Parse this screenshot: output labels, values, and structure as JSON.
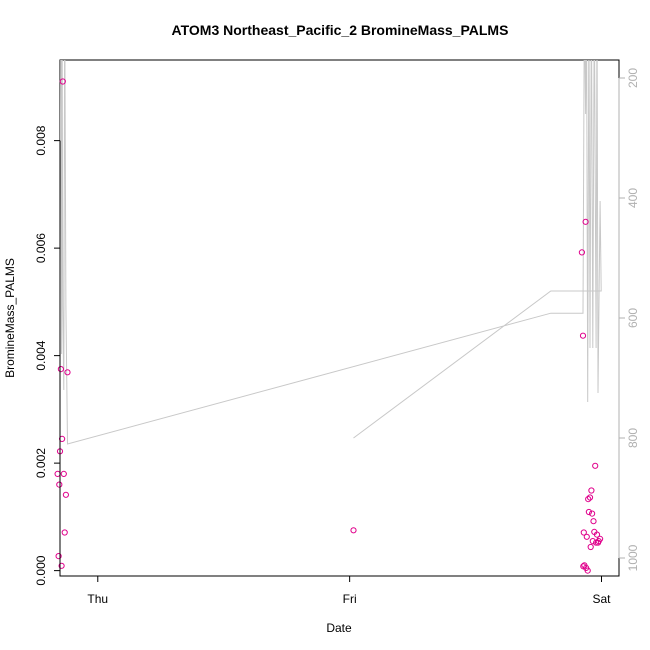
{
  "chart_data": {
    "type": "scatter",
    "title": "ATOM3 Northeast_Pacific_2 BromineMass_PALMS",
    "xlabel": "Date",
    "ylabel": "BromineMass_PALMS",
    "x_ticks": [
      "Thu",
      "Fri",
      "Sat"
    ],
    "y_ticks": [
      "0.000",
      "0.002",
      "0.004",
      "0.006",
      "0.008"
    ],
    "y_tick_values": [
      0,
      0.002,
      0.004,
      0.006,
      0.008
    ],
    "y2_ticks": [
      "200",
      "400",
      "600",
      "800",
      "1000"
    ],
    "y2_tick_values": [
      200,
      400,
      600,
      800,
      1000
    ],
    "ylim": [
      -0.0001,
      0.0095
    ],
    "y2lim": [
      1030,
      170
    ],
    "xlim": [
      "Wed 20:24",
      "Sat 01:40"
    ],
    "grid": false,
    "legend": "none",
    "colors": {
      "points": "#e0008c",
      "line": "#c8c8c8"
    },
    "series": [
      {
        "kind": "points",
        "x": [
          "Wed 20:10",
          "Wed 20:16",
          "Wed 20:20",
          "Wed 20:24",
          "Wed 20:29",
          "Wed 20:33",
          "Wed 20:36",
          "Wed 20:40",
          "Wed 20:46",
          "Wed 20:51",
          "Wed 20:58",
          "Wed 21:07",
          "Fri 00:22",
          "Fri 22:08",
          "Fri 22:14",
          "Fri 22:16",
          "Fri 22:19",
          "Fri 22:22",
          "Fri 22:29",
          "Fri 22:32",
          "Fri 22:36",
          "Fri 22:41",
          "Fri 22:44",
          "Fri 22:48",
          "Fri 22:54",
          "Fri 22:58",
          "Fri 23:02",
          "Fri 23:06",
          "Fri 23:10",
          "Fri 23:14",
          "Fri 23:19",
          "Fri 23:24",
          "Fri 23:29",
          "Fri 23:34",
          "Fri 23:40",
          "Fri 23:44",
          "Fri 23:52"
        ],
        "y": [
          0.0018,
          0.00027,
          0.0016,
          0.00222,
          0.00375,
          9e-05,
          0.00245,
          0.0091,
          0.0018,
          0.00071,
          0.00141,
          0.00369,
          0.00075,
          0.00592,
          0.00437,
          8e-05,
          0.00071,
          0.0001,
          0.00649,
          5e-05,
          0.00063,
          0.0,
          0.00133,
          0.00109,
          0.00136,
          0.00044,
          0.00149,
          0.00106,
          0.00055,
          0.00092,
          0.00072,
          0.00195,
          0.00052,
          0.00067,
          0.00052,
          0.00055,
          0.00059
        ]
      },
      {
        "kind": "line",
        "axis": "right",
        "x": [
          "Wed 20:10",
          "Wed 20:16",
          "Wed 20:22",
          "Wed 20:29",
          "Wed 20:33",
          "Wed 20:36",
          "Wed 20:40",
          "Wed 20:46",
          "Wed 20:51",
          "Wed 20:58",
          "Wed 21:07",
          "Fri 19:10",
          "Fri 22:14",
          "Fri 22:22",
          "Fri 22:29",
          "Fri 22:34",
          "Fri 22:41",
          "Fri 22:48",
          "Fri 22:54",
          "Fri 23:02",
          "Fri 23:10",
          "Fri 23:19",
          "Fri 23:29",
          "Fri 23:34",
          "Fri 23:40",
          "Fri 23:52",
          "Fri 23:58",
          "Fri 19:10",
          "Fri 00:22"
        ],
        "y": [
          370,
          60,
          660,
          60,
          660,
          60,
          580,
          720,
          60,
          580,
          810,
          592,
          592,
          60,
          260,
          60,
          740,
          60,
          650,
          60,
          650,
          60,
          650,
          60,
          725,
          405,
          555,
          555,
          800
        ]
      }
    ]
  }
}
